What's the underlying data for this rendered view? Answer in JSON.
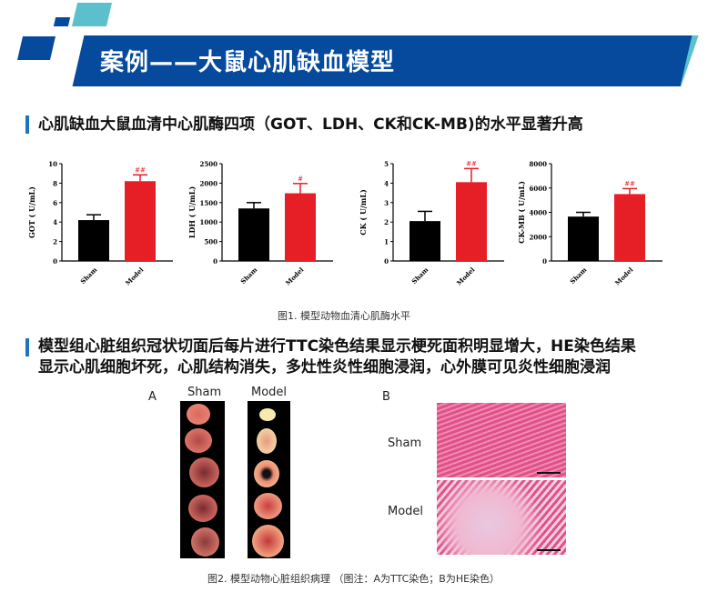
{
  "header": {
    "title": "案例——大鼠心肌缺血模型",
    "colors": {
      "primary": "#054a9d",
      "accent": "#5bc0cc"
    }
  },
  "section1": {
    "heading": "心肌缺血大鼠血清中心肌酶四项（GOT、LDH、CK和CK-MB)的水平显著升高",
    "caption": "图1. 模型动物血清心肌酶水平"
  },
  "chart_data": [
    {
      "type": "bar",
      "ylabel": "GOT ( U/mL)",
      "categories": [
        "Sham",
        "Model"
      ],
      "values": [
        4.2,
        8.2
      ],
      "errors": [
        0.55,
        0.65
      ],
      "annotations": [
        "",
        "##"
      ],
      "ylim": [
        0,
        10
      ],
      "yticks": [
        "0",
        "2",
        "4",
        "6",
        "8",
        "10"
      ],
      "colors": [
        "#000000",
        "#e61e25"
      ]
    },
    {
      "type": "bar",
      "ylabel": "LDH ( U/mL)",
      "categories": [
        "Sham",
        "Model"
      ],
      "values": [
        1350,
        1740
      ],
      "errors": [
        150,
        250
      ],
      "annotations": [
        "",
        "#"
      ],
      "ylim": [
        0,
        2500
      ],
      "yticks": [
        "0",
        "500",
        "1000",
        "1500",
        "2000",
        "2500"
      ],
      "colors": [
        "#000000",
        "#e61e25"
      ]
    },
    {
      "type": "bar",
      "ylabel": "CK ( U/mL)",
      "categories": [
        "Sham",
        "Model"
      ],
      "values": [
        2.05,
        4.05
      ],
      "errors": [
        0.5,
        0.7
      ],
      "annotations": [
        "",
        "##"
      ],
      "ylim": [
        0,
        5
      ],
      "yticks": [
        "0",
        "1",
        "2",
        "3",
        "4",
        "5"
      ],
      "colors": [
        "#000000",
        "#e61e25"
      ]
    },
    {
      "type": "bar",
      "ylabel": "CK-MB ( U/mL)",
      "categories": [
        "Sham",
        "Model"
      ],
      "values": [
        3650,
        5500
      ],
      "errors": [
        350,
        450
      ],
      "annotations": [
        "",
        "##"
      ],
      "ylim": [
        0,
        8000
      ],
      "yticks": [
        "0",
        "2000",
        "4000",
        "6000",
        "8000"
      ],
      "colors": [
        "#000000",
        "#e61e25"
      ]
    }
  ],
  "section2": {
    "heading_line1": "模型组心脏组织冠状切面后每片进行TTC染色结果显示梗死面积明显增大，HE染色结果",
    "heading_line2": "显示心肌细胞坏死，心肌结构消失，多灶性炎性细胞浸润，心外膜可见炎性细胞浸润",
    "panel_a": {
      "label": "A",
      "sham": "Sham",
      "model": "Model"
    },
    "panel_b": {
      "label": "B",
      "sham": "Sham",
      "model": "Model"
    },
    "caption": "图2. 模型动物心脏组织病理 （图注：A为TTC染色；B为HE染色）"
  }
}
